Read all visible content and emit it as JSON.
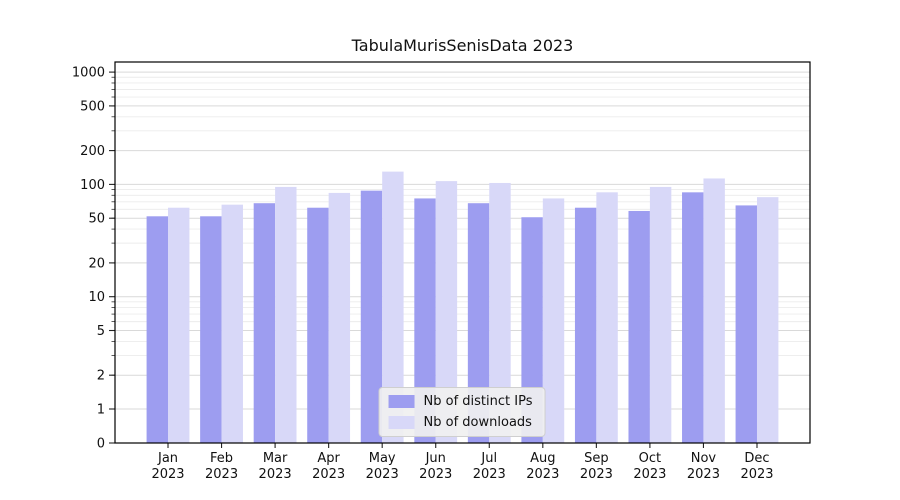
{
  "title": "TabulaMurisSenisData 2023",
  "chart_data": {
    "type": "bar",
    "yscale": "symlog",
    "grid": true,
    "legend_position": "lower center",
    "year": "2023",
    "categories": [
      "Jan",
      "Feb",
      "Mar",
      "Apr",
      "May",
      "Jun",
      "Jul",
      "Aug",
      "Sep",
      "Oct",
      "Nov",
      "Dec"
    ],
    "y_ticks": [
      0,
      1,
      2,
      5,
      10,
      20,
      50,
      100,
      200,
      500,
      1000
    ],
    "ylim": [
      0,
      1228
    ],
    "series": [
      {
        "name": "Nb of distinct IPs",
        "color": "#9d9df0",
        "values": [
          52,
          52,
          68,
          62,
          88,
          75,
          68,
          51,
          62,
          58,
          85,
          65
        ]
      },
      {
        "name": "Nb of downloads",
        "color": "#d8d8f8",
        "values": [
          62,
          66,
          95,
          84,
          130,
          107,
          103,
          75,
          85,
          95,
          113,
          77
        ]
      }
    ]
  }
}
